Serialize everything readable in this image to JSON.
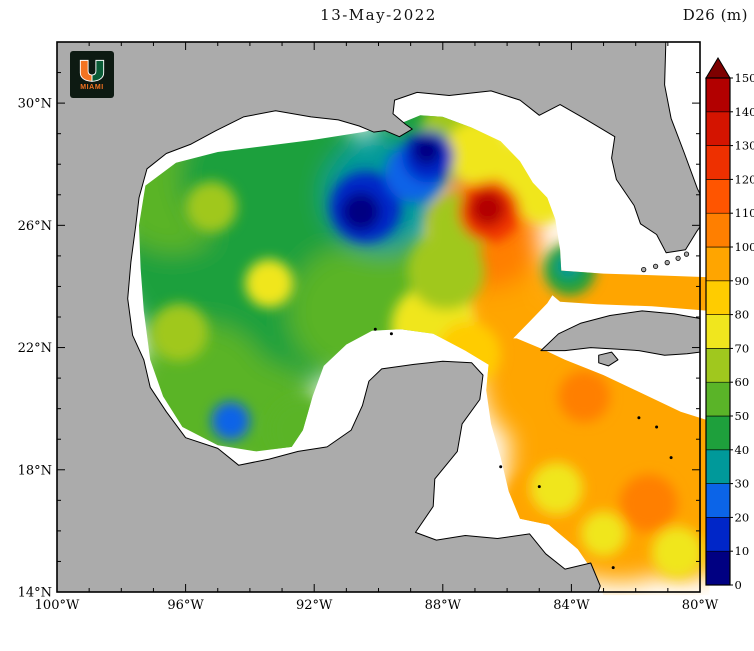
{
  "header": {
    "title": "13-May-2022",
    "variable_label": "D26 (m)"
  },
  "logo": {
    "text": "MIAMI",
    "orange": "#f47321",
    "green": "#0a5c36",
    "background": "#0d1a12"
  },
  "chart_data": {
    "type": "heatmap",
    "title": "13-May-2022",
    "variable": "D26",
    "units": "m",
    "region": "Gulf of Mexico and northwestern Caribbean Sea",
    "land_color": "#ababab",
    "no_data_color": "#ffffff",
    "lon_axis": {
      "min": -100,
      "max": -80,
      "minor_step": 1,
      "ticks": [
        {
          "value": -100,
          "label": "100°W"
        },
        {
          "value": -96,
          "label": "96°W"
        },
        {
          "value": -92,
          "label": "92°W"
        },
        {
          "value": -88,
          "label": "88°W"
        },
        {
          "value": -84,
          "label": "84°W"
        },
        {
          "value": -80,
          "label": "80°W"
        }
      ]
    },
    "lat_axis": {
      "min": 14,
      "max": 32,
      "minor_step": 1,
      "ticks": [
        {
          "value": 14,
          "label": "14°N"
        },
        {
          "value": 18,
          "label": "18°N"
        },
        {
          "value": 22,
          "label": "22°N"
        },
        {
          "value": 26,
          "label": "26°N"
        },
        {
          "value": 30,
          "label": "30°N"
        }
      ]
    },
    "colorbar": {
      "min": 0,
      "max": 150,
      "step": 10,
      "tick_labels": [
        "0",
        "10",
        "20",
        "30",
        "40",
        "50",
        "60",
        "70",
        "80",
        "90",
        "100",
        "110",
        "120",
        "130",
        "140",
        "150"
      ],
      "band_colors": [
        "#000082",
        "#0026c8",
        "#0b64e8",
        "#00999a",
        "#1ea03c",
        "#5ab428",
        "#a0c81e",
        "#f0e61e",
        "#ffcc00",
        "#ffa500",
        "#ff7f00",
        "#ff5500",
        "#ee3000",
        "#d41400",
        "#b20000"
      ],
      "over_arrow_color": "#7d0000"
    },
    "field_features": [
      {
        "name": "west-gulf-base",
        "lon": -95.0,
        "lat": 25.0,
        "radius_deg": 3.2,
        "value_m": 45
      },
      {
        "name": "central-west-base",
        "lon": -92.5,
        "lat": 24.0,
        "radius_deg": 3.0,
        "value_m": 48
      },
      {
        "name": "nw-corner",
        "lon": -96.4,
        "lat": 27.2,
        "radius_deg": 2.0,
        "value_m": 50
      },
      {
        "name": "north-central-west",
        "lon": -94.0,
        "lat": 27.6,
        "radius_deg": 2.2,
        "value_m": 46
      },
      {
        "name": "north-shelf-green",
        "lon": -92.0,
        "lat": 28.3,
        "radius_deg": 1.5,
        "value_m": 47
      },
      {
        "name": "west-of-eddy-green",
        "lon": -91.5,
        "lat": 26.6,
        "radius_deg": 2.0,
        "value_m": 40
      },
      {
        "name": "sw-campeche",
        "lon": -95.5,
        "lat": 20.5,
        "radius_deg": 2.2,
        "value_m": 58
      },
      {
        "name": "campeche-south",
        "lon": -93.6,
        "lat": 19.6,
        "radius_deg": 1.8,
        "value_m": 55
      },
      {
        "name": "campeche-east",
        "lon": -92.4,
        "lat": 19.3,
        "radius_deg": 1.0,
        "value_m": 55
      },
      {
        "name": "south-central-green",
        "lon": -90.8,
        "lat": 23.2,
        "radius_deg": 2.0,
        "value_m": 52
      },
      {
        "name": "central-south-green",
        "lon": -89.5,
        "lat": 24.0,
        "radius_deg": 1.8,
        "value_m": 55
      },
      {
        "name": "ne-shelf-green",
        "lon": -88.6,
        "lat": 28.9,
        "radius_deg": 1.6,
        "value_m": 45
      },
      {
        "name": "ne-shelf-yellowgreen",
        "lon": -87.5,
        "lat": 29.0,
        "radius_deg": 1.2,
        "value_m": 62
      },
      {
        "name": "carib-main-orange",
        "lon": -82.5,
        "lat": 18.0,
        "radius_deg": 3.5,
        "value_m": 95
      },
      {
        "name": "carib-ne-orange",
        "lon": -80.8,
        "lat": 20.5,
        "radius_deg": 2.2,
        "value_m": 95
      },
      {
        "name": "carib-nw-orange",
        "lon": -84.8,
        "lat": 20.8,
        "radius_deg": 2.0,
        "value_m": 95
      },
      {
        "name": "carib-sw-orange",
        "lon": -85.0,
        "lat": 16.8,
        "radius_deg": 1.2,
        "value_m": 92
      },
      {
        "name": "carib-se-orange",
        "lon": -80.5,
        "lat": 16.0,
        "radius_deg": 1.5,
        "value_m": 95
      },
      {
        "name": "yucatan-channel-orange",
        "lon": -85.9,
        "lat": 22.5,
        "radius_deg": 1.6,
        "value_m": 96
      },
      {
        "name": "loop-south-orange",
        "lon": -86.2,
        "lat": 24.2,
        "radius_deg": 1.5,
        "value_m": 98
      },
      {
        "name": "loop-mid-orange",
        "lon": -86.5,
        "lat": 25.5,
        "radius_deg": 1.5,
        "value_m": 105
      },
      {
        "name": "loop-north-orange",
        "lon": -86.2,
        "lat": 27.4,
        "radius_deg": 0.9,
        "value_m": 95
      },
      {
        "name": "straits-west-orange",
        "lon": -82.5,
        "lat": 23.8,
        "radius_deg": 2.2,
        "value_m": 92
      },
      {
        "name": "straits-east-orange",
        "lon": -80.4,
        "lat": 23.8,
        "radius_deg": 1.4,
        "value_m": 92
      },
      {
        "name": "bank-edge-yellow",
        "lon": -88.3,
        "lat": 22.7,
        "radius_deg": 1.3,
        "value_m": 70
      },
      {
        "name": "channel-west-yellow",
        "lon": -87.2,
        "lat": 21.8,
        "radius_deg": 1.0,
        "value_m": 80
      },
      {
        "name": "loop-west-yellow",
        "lon": -87.9,
        "lat": 24.5,
        "radius_deg": 1.2,
        "value_m": 62
      },
      {
        "name": "eddy-west-yellow",
        "lon": -87.5,
        "lat": 26.0,
        "radius_deg": 1.0,
        "value_m": 68
      },
      {
        "name": "ne-yellow",
        "lon": -86.9,
        "lat": 28.4,
        "radius_deg": 1.0,
        "value_m": 72
      },
      {
        "name": "east-edge-yellow-north",
        "lon": -85.4,
        "lat": 27.9,
        "radius_deg": 0.9,
        "value_m": 70
      },
      {
        "name": "east-edge-yellow",
        "lon": -84.9,
        "lat": 27.0,
        "radius_deg": 0.9,
        "value_m": 72
      },
      {
        "name": "west-yellow-spot",
        "lon": -93.4,
        "lat": 24.1,
        "radius_deg": 0.75,
        "value_m": 72
      },
      {
        "name": "nw-yellow-spot",
        "lon": -95.2,
        "lat": 26.6,
        "radius_deg": 0.8,
        "value_m": 66
      },
      {
        "name": "sw-yellow-spot",
        "lon": -96.2,
        "lat": 22.5,
        "radius_deg": 0.9,
        "value_m": 64
      },
      {
        "name": "campeche-teal-spot",
        "lon": -94.6,
        "lat": 19.6,
        "radius_deg": 0.6,
        "value_m": 28
      },
      {
        "name": "cold-ring-teal",
        "lon": -89.9,
        "lat": 27.0,
        "radius_deg": 1.8,
        "value_m": 33
      },
      {
        "name": "cold-core-blue",
        "lon": -90.4,
        "lat": 26.6,
        "radius_deg": 1.1,
        "value_m": 15
      },
      {
        "name": "cold-core-navy",
        "lon": -90.55,
        "lat": 26.45,
        "radius_deg": 0.6,
        "value_m": 4
      },
      {
        "name": "cold-bridge-teal",
        "lon": -88.9,
        "lat": 27.7,
        "radius_deg": 0.9,
        "value_m": 26
      },
      {
        "name": "cold-ne-blue",
        "lon": -88.45,
        "lat": 28.25,
        "radius_deg": 0.8,
        "value_m": 13
      },
      {
        "name": "cold-ne-navy",
        "lon": -88.5,
        "lat": 28.45,
        "radius_deg": 0.45,
        "value_m": 6
      },
      {
        "name": "warm-eddy-orange-ring",
        "lon": -86.55,
        "lat": 26.35,
        "radius_deg": 1.5,
        "value_m": 108
      },
      {
        "name": "warm-eddy-red-ring",
        "lon": -86.55,
        "lat": 26.45,
        "radius_deg": 0.95,
        "value_m": 126
      },
      {
        "name": "warm-eddy-core",
        "lon": -86.6,
        "lat": 26.55,
        "radius_deg": 0.55,
        "value_m": 146
      },
      {
        "name": "cuba-west-green",
        "lon": -84.05,
        "lat": 24.55,
        "radius_deg": 0.8,
        "value_m": 48
      },
      {
        "name": "cuba-west-teal",
        "lon": -84.1,
        "lat": 24.65,
        "radius_deg": 0.35,
        "value_m": 36
      },
      {
        "name": "carib-yellow-1",
        "lon": -84.45,
        "lat": 17.4,
        "radius_deg": 0.8,
        "value_m": 72
      },
      {
        "name": "carib-yellow-2",
        "lon": -83.0,
        "lat": 15.9,
        "radius_deg": 0.7,
        "value_m": 74
      },
      {
        "name": "carib-yellow-3",
        "lon": -80.7,
        "lat": 15.3,
        "radius_deg": 0.8,
        "value_m": 73
      },
      {
        "name": "carib-deep-orange-1",
        "lon": -81.6,
        "lat": 16.9,
        "radius_deg": 0.9,
        "value_m": 106
      },
      {
        "name": "carib-deep-orange-2",
        "lon": -83.6,
        "lat": 20.4,
        "radius_deg": 0.8,
        "value_m": 102
      }
    ]
  }
}
